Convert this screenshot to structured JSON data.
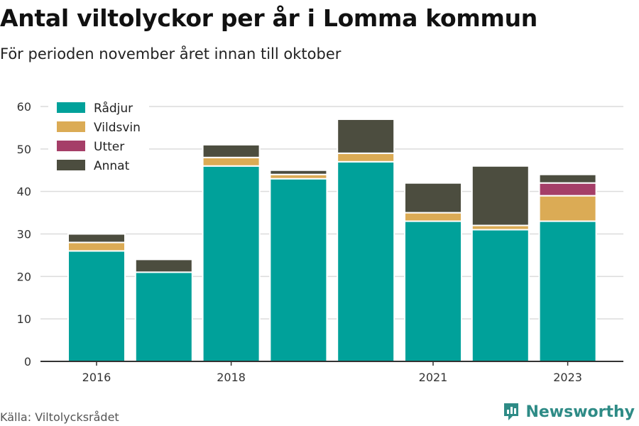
{
  "header": {
    "title": "Antal viltolyckor per år i Lomma kommun",
    "subtitle": "För perioden november året innan till oktober"
  },
  "footer": {
    "source": "Källa: Viltolycksrådet",
    "brand": "Newsworthy",
    "brand_icon": "newsworthy-logo-icon"
  },
  "colors": {
    "Rådjur": "#00a19a",
    "Vildsvin": "#dbab55",
    "Utter": "#a53e68",
    "Annat": "#4c4d3f",
    "grid": "#dcdcdc",
    "axis": "#333333"
  },
  "chart_data": {
    "type": "bar",
    "stacked": true,
    "categories": [
      2016,
      2017,
      2018,
      2019,
      2020,
      2021,
      2022,
      2023
    ],
    "x_tick_labels": [
      "2016",
      "2018",
      "2021",
      "2023"
    ],
    "series": [
      {
        "name": "Rådjur",
        "values": [
          26,
          21,
          46,
          43,
          47,
          33,
          31,
          33
        ]
      },
      {
        "name": "Vildsvin",
        "values": [
          2,
          0,
          2,
          1,
          2,
          2,
          1,
          6
        ]
      },
      {
        "name": "Utter",
        "values": [
          0,
          0,
          0,
          0,
          0,
          0,
          0,
          3
        ]
      },
      {
        "name": "Annat",
        "values": [
          2,
          3,
          3,
          1,
          8,
          7,
          14,
          2
        ]
      }
    ],
    "ylim": [
      0,
      60
    ],
    "y_ticks": [
      0,
      10,
      20,
      30,
      40,
      50,
      60
    ],
    "grid": true,
    "legend_position": "top-left"
  }
}
